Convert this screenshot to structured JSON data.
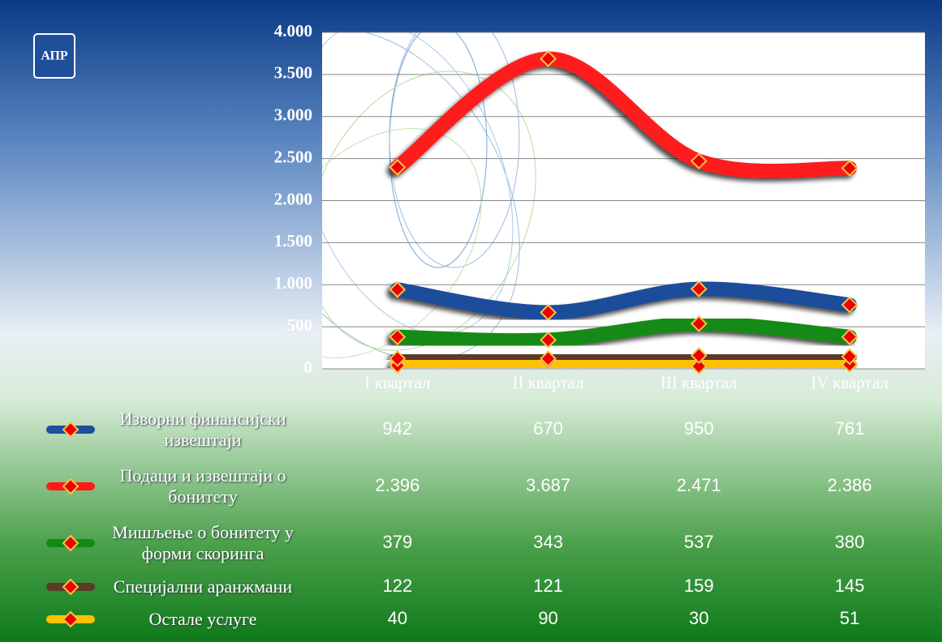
{
  "logo": "АПР",
  "chart_data": {
    "type": "line",
    "categories": [
      "I квартал",
      "II квартал",
      "III квартал",
      "IV квартал"
    ],
    "series": [
      {
        "name": "Изворни финансијски извештаји",
        "color": "#1f4e9a",
        "values": [
          942,
          670,
          950,
          761
        ]
      },
      {
        "name": "Подаци и извештаји о бонитету",
        "color": "#ff1a1a",
        "values": [
          2396,
          3687,
          2471,
          2386
        ],
        "value_labels": [
          "2.396",
          "3.687",
          "2.471",
          "2.386"
        ]
      },
      {
        "name": "Мишљење о бонитету у форми скоринга",
        "color": "#138a13",
        "values": [
          379,
          343,
          537,
          380
        ]
      },
      {
        "name": "Специјални аранжмани",
        "color": "#5b3b2c",
        "values": [
          122,
          121,
          159,
          145
        ]
      },
      {
        "name": "Остале услуге",
        "color": "#ffc000",
        "values": [
          40,
          90,
          30,
          51
        ]
      }
    ],
    "ylim": [
      0,
      4000
    ],
    "yticks": [
      0,
      500,
      {
        "value": 1000,
        "label": "1.000"
      },
      {
        "value": 1500,
        "label": "1.500"
      },
      {
        "value": 2000,
        "label": "2.000"
      },
      {
        "value": 2500,
        "label": "2.500"
      },
      {
        "value": 3000,
        "label": "3.000"
      },
      {
        "value": 3500,
        "label": "3.500"
      },
      {
        "value": 4000,
        "label": "4.000"
      }
    ],
    "grid": true
  }
}
